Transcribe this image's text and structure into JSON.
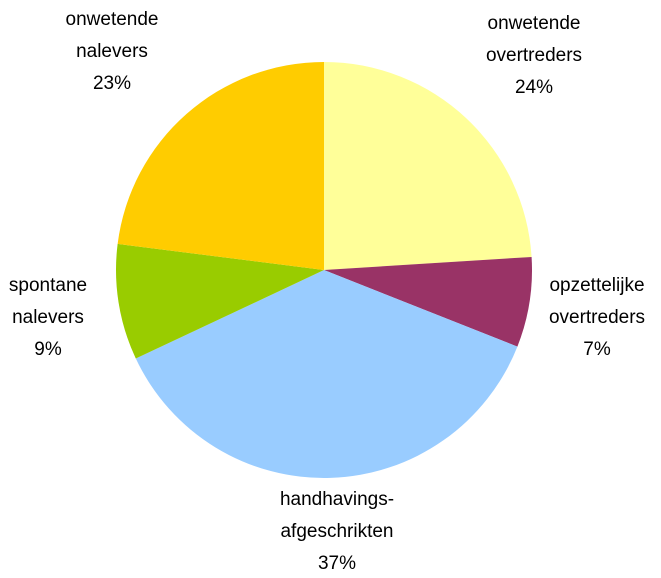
{
  "chart_data": {
    "type": "pie",
    "categories": [
      "onwetende\novertreders",
      "opzettelijke\novertreders",
      "handhavings-\nafgeschrikten",
      "spontane\nnalevers",
      "onwetende\nnalevers"
    ],
    "values": [
      24,
      7,
      37,
      9,
      23
    ],
    "value_labels": [
      "24%",
      "7%",
      "37%",
      "9%",
      "23%"
    ],
    "colors": [
      "#FFFF99",
      "#993366",
      "#99CCFF",
      "#99CC00",
      "#FFCC00"
    ]
  }
}
